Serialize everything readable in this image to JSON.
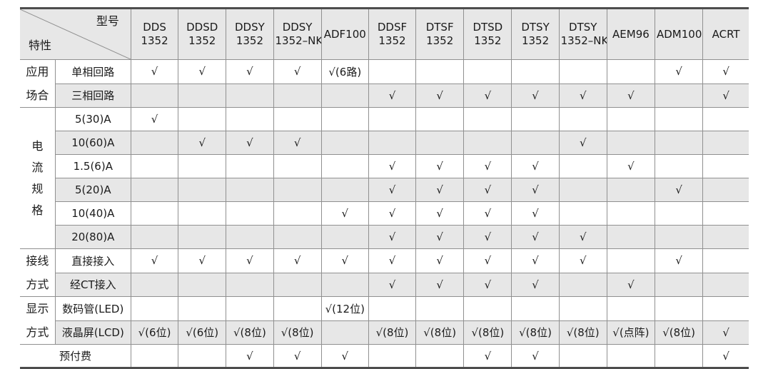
{
  "header": {
    "corner": {
      "top_right_label": "型号",
      "bottom_left_label": "特性"
    },
    "models": [
      {
        "lines": [
          "DDS",
          "1352"
        ]
      },
      {
        "lines": [
          "DDSD",
          "1352"
        ]
      },
      {
        "lines": [
          "DDSY",
          "1352"
        ]
      },
      {
        "lines": [
          "DDSY",
          "1352–NK"
        ]
      },
      {
        "lines": [
          "ADF100"
        ]
      },
      {
        "lines": [
          "DDSF",
          "1352"
        ]
      },
      {
        "lines": [
          "DTSF",
          "1352"
        ]
      },
      {
        "lines": [
          "DTSD",
          "1352"
        ]
      },
      {
        "lines": [
          "DTSY",
          "1352"
        ]
      },
      {
        "lines": [
          "DTSY",
          "1352–NK"
        ]
      },
      {
        "lines": [
          "AEM96"
        ]
      },
      {
        "lines": [
          "ADM100"
        ]
      },
      {
        "lines": [
          "ACRT"
        ]
      }
    ]
  },
  "check_glyph": "√",
  "groups": [
    {
      "label": "应用场合",
      "label_lines": [
        "应用",
        "场合"
      ],
      "rows": [
        {
          "feature": "单相回路",
          "cells": [
            "√",
            "√",
            "√",
            "√",
            "√(6路)",
            "",
            "",
            "",
            "",
            "",
            "",
            "√",
            "√"
          ]
        },
        {
          "feature": "三相回路",
          "cells": [
            "",
            "",
            "",
            "",
            "",
            "√",
            "√",
            "√",
            "√",
            "√",
            "√",
            "",
            "√"
          ]
        }
      ]
    },
    {
      "label": "电流规格",
      "label_lines": [
        "电",
        "流",
        "规",
        "格"
      ],
      "rows": [
        {
          "feature": "5(30)A",
          "cells": [
            "√",
            "",
            "",
            "",
            "",
            "",
            "",
            "",
            "",
            "",
            "",
            "",
            ""
          ]
        },
        {
          "feature": "10(60)A",
          "cells": [
            "",
            "√",
            "√",
            "√",
            "",
            "",
            "",
            "",
            "",
            "√",
            "",
            "",
            ""
          ]
        },
        {
          "feature": "1.5(6)A",
          "cells": [
            "",
            "",
            "",
            "",
            "",
            "√",
            "√",
            "√",
            "√",
            "",
            "√",
            "",
            ""
          ]
        },
        {
          "feature": "5(20)A",
          "cells": [
            "",
            "",
            "",
            "",
            "",
            "√",
            "√",
            "√",
            "√",
            "",
            "",
            "√",
            ""
          ]
        },
        {
          "feature": "10(40)A",
          "cells": [
            "",
            "",
            "",
            "",
            "√",
            "√",
            "√",
            "√",
            "√",
            "",
            "",
            "",
            ""
          ]
        },
        {
          "feature": "20(80)A",
          "cells": [
            "",
            "",
            "",
            "",
            "",
            "√",
            "√",
            "√",
            "√",
            "√",
            "",
            "",
            ""
          ]
        }
      ]
    },
    {
      "label": "接线方式",
      "label_lines": [
        "接线",
        "方式"
      ],
      "rows": [
        {
          "feature": "直接接入",
          "cells": [
            "√",
            "√",
            "√",
            "√",
            "√",
            "√",
            "√",
            "√",
            "√",
            "√",
            "",
            "√",
            ""
          ]
        },
        {
          "feature": "经CT接入",
          "cells": [
            "",
            "",
            "",
            "",
            "",
            "√",
            "√",
            "√",
            "√",
            "",
            "√",
            "",
            ""
          ]
        }
      ]
    },
    {
      "label": "显示方式",
      "label_lines": [
        "显示",
        "方式"
      ],
      "rows": [
        {
          "feature": "数码管(LED)",
          "cells": [
            "",
            "",
            "",
            "",
            "√(12位)",
            "",
            "",
            "",
            "",
            "",
            "",
            "",
            ""
          ]
        },
        {
          "feature": "液晶屏(LCD)",
          "cells": [
            "√(6位)",
            "√(6位)",
            "√(8位)",
            "√(8位)",
            "",
            "√(8位)",
            "√(8位)",
            "√(8位)",
            "√(8位)",
            "√(8位)",
            "√(点阵)",
            "√(8位)",
            "√"
          ]
        }
      ]
    },
    {
      "label": "",
      "label_lines": [],
      "rows": [
        {
          "feature": "预付费",
          "merged": true,
          "cells": [
            "",
            "",
            "√",
            "√",
            "√",
            "",
            "",
            "√",
            "√",
            "",
            "",
            "",
            "√"
          ]
        }
      ]
    }
  ]
}
